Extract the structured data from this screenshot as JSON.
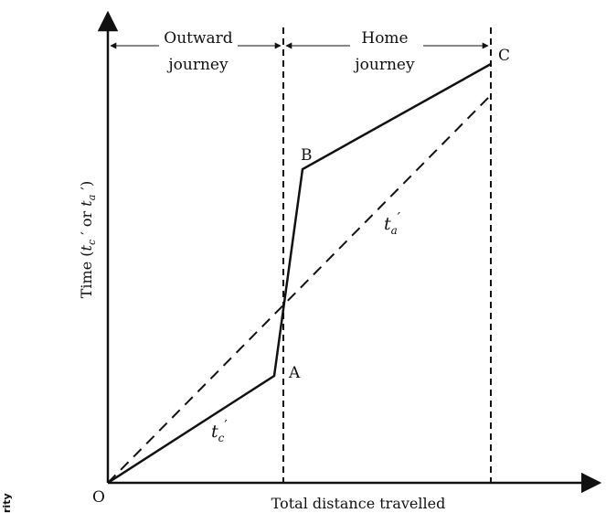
{
  "diagram": {
    "sections": {
      "outward_line1": "Outward",
      "outward_line2": "journey",
      "home_line1": "Home",
      "home_line2": "journey"
    },
    "points": {
      "origin": "O",
      "a": "A",
      "b": "B",
      "c": "C"
    },
    "curves": {
      "tc_label": "t",
      "tc_sub": "c",
      "tc_prime": "′",
      "ta_label": "t",
      "ta_sub": "a",
      "ta_prime": "′"
    },
    "axes": {
      "x_label": "Total distance travelled",
      "y_label_prefix": "Time (",
      "y_t1": "t",
      "y_sub1": "c",
      "y_mid": " ′ or ",
      "y_t2": "t",
      "y_sub2": "a",
      "y_suffix": " ′)"
    },
    "side_text": "rity"
  }
}
